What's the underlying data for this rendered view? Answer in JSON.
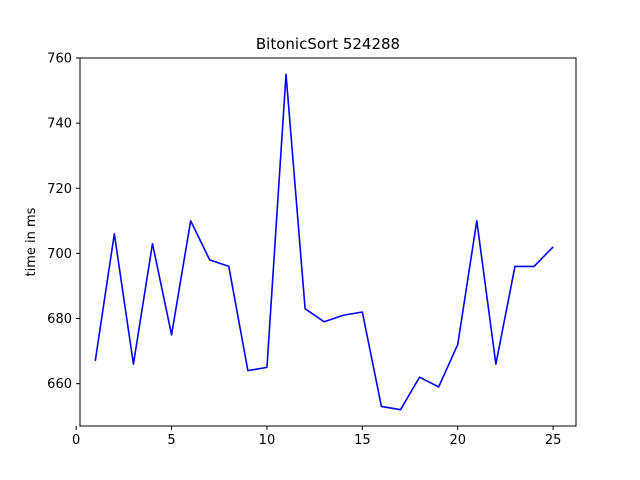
{
  "chart_data": {
    "type": "line",
    "title": "BitonicSort 524288",
    "xlabel": "",
    "ylabel": "time in ms",
    "xlim": [
      0.2,
      26.2
    ],
    "ylim": [
      647,
      760
    ],
    "xticks": [
      0,
      5,
      10,
      15,
      20,
      25
    ],
    "yticks": [
      660,
      680,
      700,
      720,
      740,
      760
    ],
    "grid": false,
    "legend": "none",
    "series": [
      {
        "color": "#0000ff",
        "x": [
          1,
          2,
          3,
          4,
          5,
          6,
          7,
          8,
          9,
          10,
          11,
          12,
          13,
          14,
          15,
          16,
          17,
          18,
          19,
          20,
          21,
          22,
          23,
          24,
          25
        ],
        "y": [
          667,
          706,
          666,
          703,
          675,
          710,
          698,
          696,
          664,
          665,
          755,
          683,
          679,
          681,
          682,
          653,
          652,
          662,
          659,
          672,
          710,
          666,
          696,
          696,
          702
        ]
      }
    ]
  }
}
